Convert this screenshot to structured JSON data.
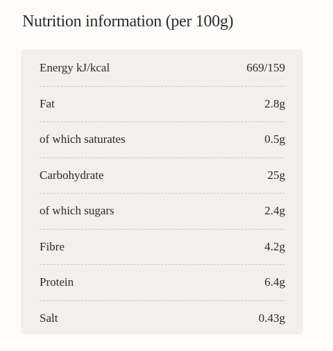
{
  "header": {
    "title": "Nutrition information (per 100g)"
  },
  "table": {
    "rows": [
      [
        "Energy kJ/kcal",
        "669/159"
      ],
      [
        "Fat",
        "2.8g"
      ],
      [
        "of which saturates",
        "0.5g"
      ],
      [
        "Carbohydrate",
        "25g"
      ],
      [
        "of which sugars",
        "2.4g"
      ],
      [
        "Fibre",
        "4.2g"
      ],
      [
        "Protein",
        "6.4g"
      ],
      [
        "Salt",
        "0.43g"
      ]
    ]
  }
}
